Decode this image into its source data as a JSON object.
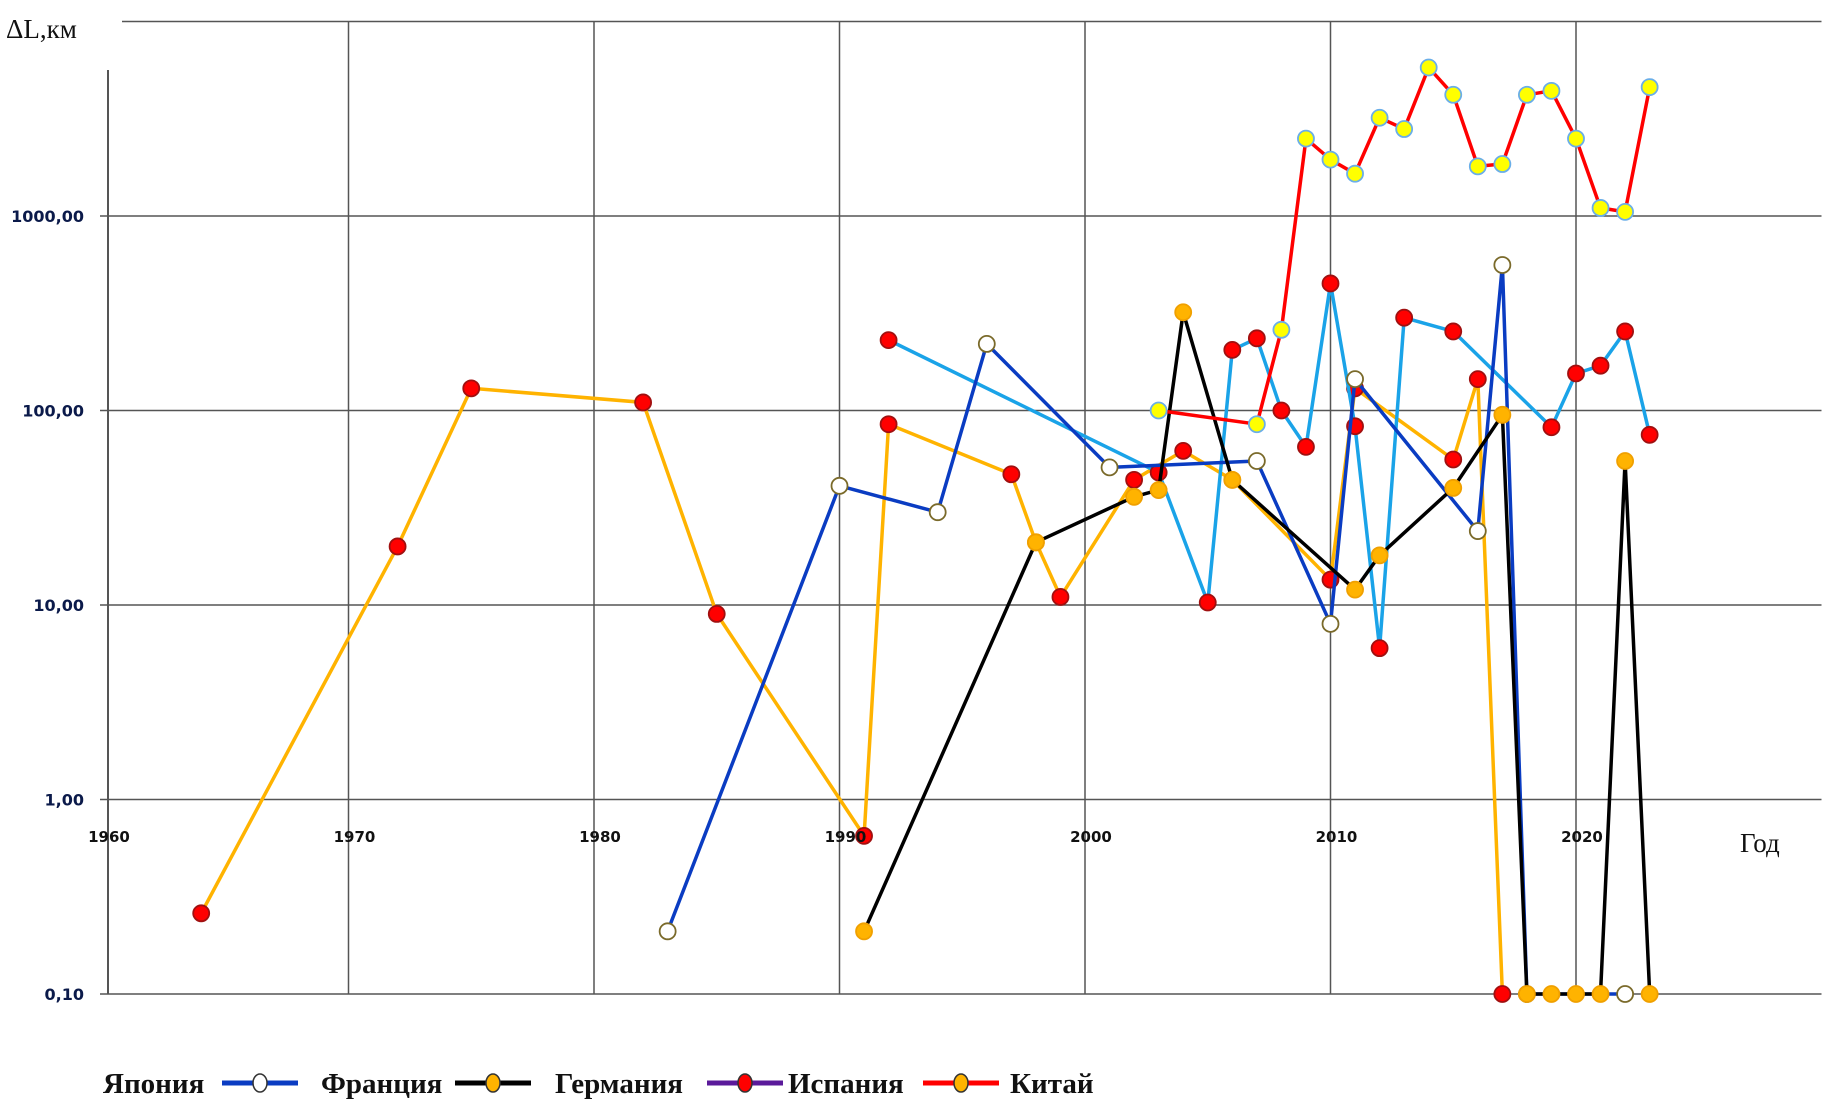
{
  "chart_data": {
    "type": "line",
    "title": "",
    "ylabel": "ΔL,км",
    "xlabel": "Год",
    "y_scale": "log",
    "ylim": [
      0.1,
      10000
    ],
    "xlim": [
      1960,
      2030
    ],
    "grid": true,
    "y_ticks": [
      {
        "value": 1000,
        "label": "1000,00"
      },
      {
        "value": 100,
        "label": "100,00"
      },
      {
        "value": 10,
        "label": "10,00"
      },
      {
        "value": 1,
        "label": "1,00"
      },
      {
        "value": 0.1,
        "label": "0,10"
      }
    ],
    "x_ticks": [
      {
        "value": 1960,
        "label": "1960"
      },
      {
        "value": 1970,
        "label": "1970"
      },
      {
        "value": 1980,
        "label": "1980"
      },
      {
        "value": 1990,
        "label": "1990"
      },
      {
        "value": 2000,
        "label": "2000"
      },
      {
        "value": 2010,
        "label": "2010"
      },
      {
        "value": 2020,
        "label": "2020"
      }
    ],
    "legend_placement": "bottom",
    "legend": [
      {
        "label": "Япония",
        "line_color": "#0a3cc2",
        "marker_color": "#ffffff"
      },
      {
        "label": "Франция",
        "line_color": "#000000",
        "marker_color": "#ffb300"
      },
      {
        "label": "Германия",
        "line_color": "#5a1a9a",
        "marker_color": "#ff0000"
      },
      {
        "label": "Испания",
        "line_color": "#ff0000",
        "marker_color": "#ffb300"
      },
      {
        "label": "Китай"
      }
    ],
    "series": [
      {
        "line_color": "#ffb300",
        "marker_color": "#ff0000",
        "x": [
          1964,
          1972,
          1975,
          1982,
          1985,
          1991,
          1992,
          1997,
          1998,
          1999,
          2002,
          2004,
          2006,
          2010,
          2011,
          2015,
          2016,
          2017
        ],
        "y": [
          0.26,
          20,
          130,
          110,
          9,
          0.65,
          85,
          47,
          21,
          11,
          44,
          62,
          44,
          13.5,
          130,
          56,
          145,
          0.1
        ],
        "markers": [
          "#ff0000",
          "#ff0000",
          "#ff0000",
          "#ff0000",
          "#ff0000",
          "#ff0000",
          "#ff0000",
          "#ff0000",
          "#ffb300",
          "#ff0000",
          "#ff0000",
          "#ff0000",
          "#ffb300",
          "#ff0000",
          "#ff0000",
          "#ff0000",
          "#ff0000",
          "#ff0000"
        ]
      },
      {
        "line_color": "#1aa3e8",
        "marker_color": "#ff0000",
        "x": [
          1992,
          2003,
          2005,
          2006,
          2007,
          2008,
          2009,
          2010,
          2011,
          2012,
          2013,
          2015,
          2019,
          2020,
          2021,
          2022,
          2023
        ],
        "y": [
          230,
          48,
          10.3,
          205,
          235,
          100,
          65,
          450,
          83,
          6,
          300,
          255,
          82,
          155,
          170,
          255,
          75
        ]
      },
      {
        "name": "Япония",
        "line_color": "#0a3cc2",
        "marker_color": "#ffffff",
        "x": [
          1983,
          1990,
          1994,
          1996,
          2001,
          2007,
          2010,
          2011,
          2016,
          2017,
          2018,
          2022
        ],
        "y": [
          0.21,
          41,
          30,
          220,
          51,
          55,
          8,
          145,
          24,
          560,
          0.1,
          0.1
        ]
      },
      {
        "name": "Франция",
        "line_color": "#000000",
        "marker_color": "#ffb300",
        "x": [
          1991,
          1998,
          2002,
          2003,
          2004,
          2006,
          2011,
          2012,
          2015,
          2017,
          2018,
          2019,
          2020,
          2021,
          2022,
          2023
        ],
        "y": [
          0.21,
          21,
          36,
          39,
          320,
          44,
          12,
          18,
          40,
          95,
          0.1,
          0.1,
          0.1,
          0.1,
          55,
          0.1
        ]
      },
      {
        "line_color": "#ff0000",
        "marker_color": "#ffff00",
        "x": [
          2003,
          2007,
          2008,
          2009,
          2010,
          2011,
          2012,
          2013,
          2014,
          2015,
          2016,
          2017,
          2018,
          2019,
          2020,
          2021,
          2022,
          2023
        ],
        "y": [
          100,
          85,
          260,
          2500,
          1950,
          1650,
          3200,
          2800,
          5800,
          4200,
          1800,
          1850,
          4200,
          4400,
          2500,
          1100,
          1050,
          4600
        ]
      }
    ]
  }
}
